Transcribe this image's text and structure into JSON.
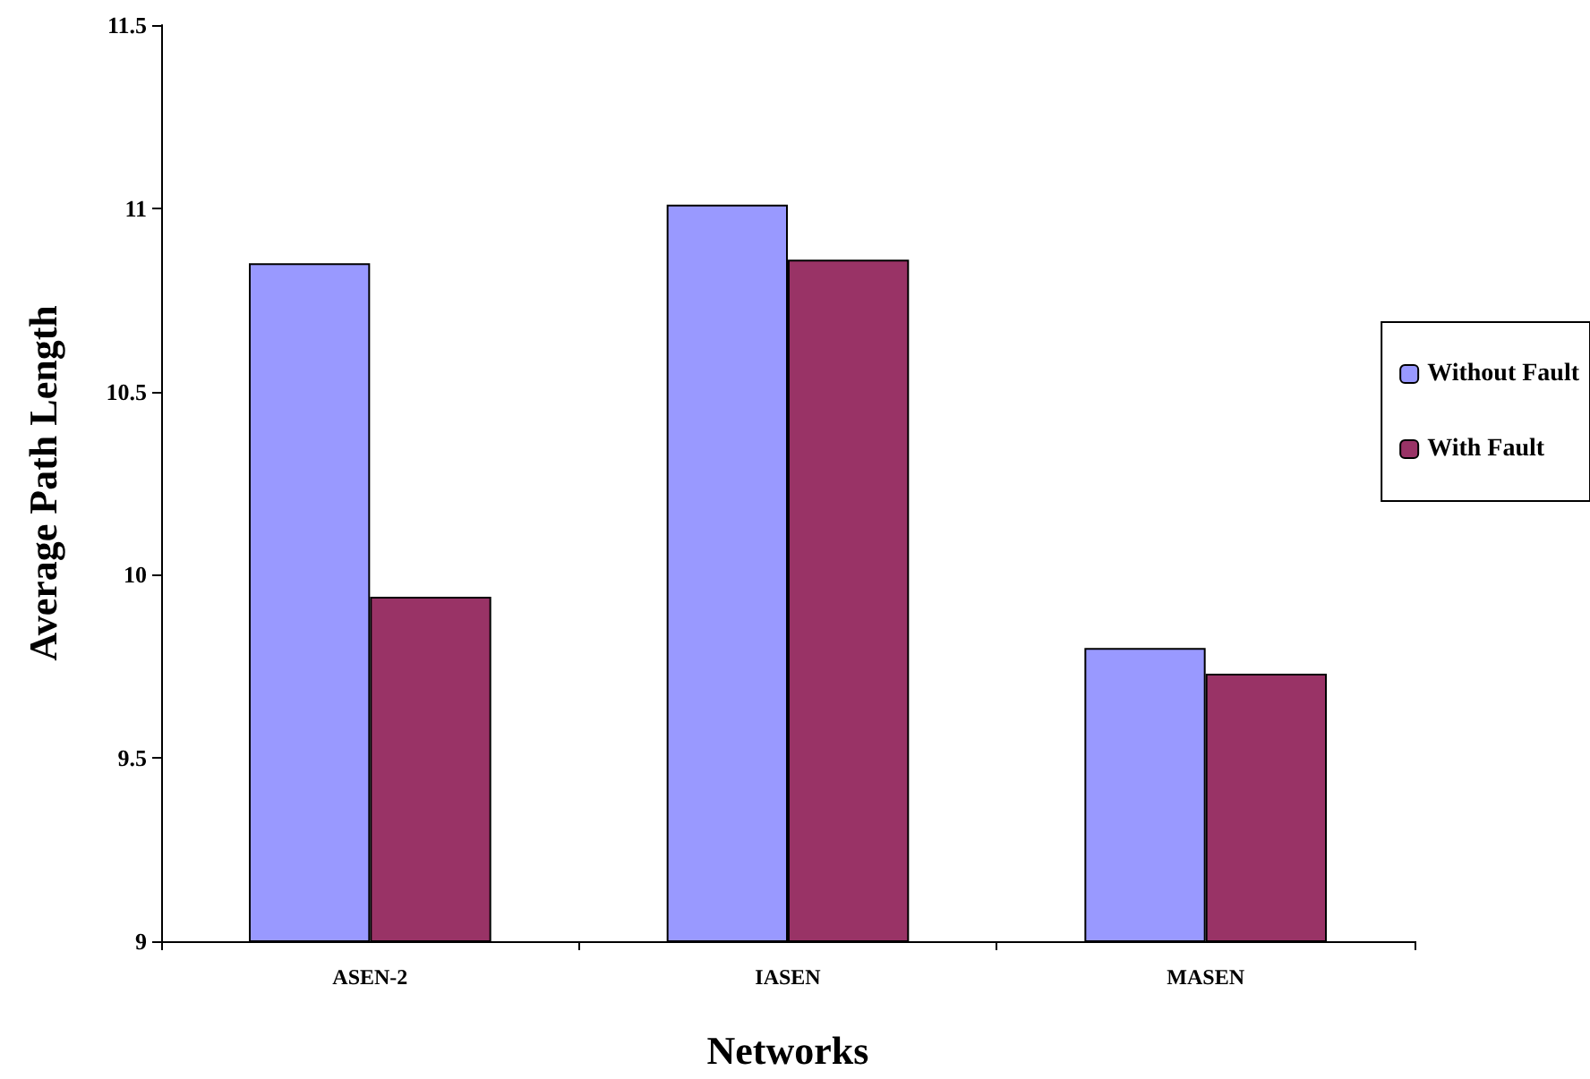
{
  "chart_data": {
    "type": "bar",
    "xlabel": "Networks",
    "ylabel": "Average Path Length",
    "categories": [
      "ASEN-2",
      "IASEN",
      "MASEN"
    ],
    "series": [
      {
        "name": "Without Fault",
        "color": "#9999ff",
        "values": [
          10.85,
          11.01,
          9.8
        ]
      },
      {
        "name": "With Fault",
        "color": "#993366",
        "values": [
          9.94,
          10.86,
          9.73
        ]
      }
    ],
    "ylim": [
      9,
      11.5
    ],
    "yticks": [
      9,
      9.5,
      10,
      10.5,
      11,
      11.5
    ],
    "grid": false,
    "legend": "right"
  }
}
